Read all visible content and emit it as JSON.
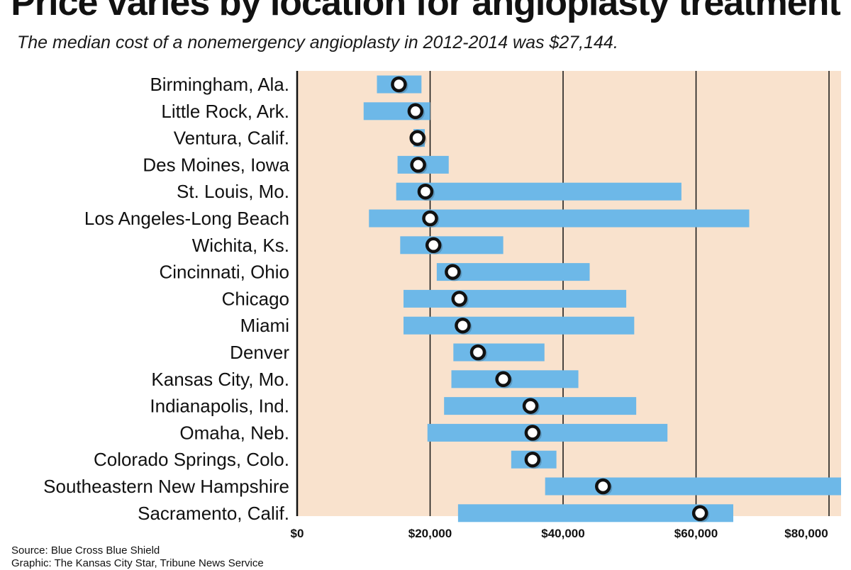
{
  "chart_data": {
    "type": "range-bar",
    "title": "Price varies by location for angioplasty treatment",
    "subtitle": "The median cost of a nonemergency angioplasty in 2012-2014 was $27,144.",
    "categories": [
      "Birmingham, Ala.",
      "Little Rock, Ark.",
      "Ventura, Calif.",
      "Des Moines, Iowa",
      "St. Louis, Mo.",
      "Los Angeles-Long Beach",
      "Wichita, Ks.",
      "Cincinnati, Ohio",
      "Chicago",
      "Miami",
      "Denver",
      "Kansas City, Mo.",
      "Indianapolis, Ind.",
      "Omaha, Neb.",
      "Colorado Springs, Colo.",
      "Southeastern New Hampshire",
      "Sacramento, Calif."
    ],
    "low": [
      12000,
      10000,
      17500,
      15100,
      14900,
      10800,
      15500,
      21000,
      16000,
      16000,
      23500,
      23200,
      22100,
      19600,
      32200,
      37300,
      24200
    ],
    "high": [
      18700,
      20000,
      19200,
      22800,
      57800,
      68000,
      31000,
      44000,
      49500,
      50700,
      37200,
      42300,
      51000,
      55700,
      39000,
      82000,
      65600
    ],
    "median": [
      15300,
      17800,
      18100,
      18200,
      19300,
      20000,
      20500,
      23400,
      24400,
      24900,
      27200,
      31000,
      35100,
      35400,
      35400,
      46000,
      60600
    ],
    "x_ticks": [
      0,
      20000,
      40000,
      60000,
      80000
    ],
    "x_tick_labels": [
      "$0",
      "$20,000",
      "$40,000",
      "$60,000",
      "$80,000"
    ],
    "xlim": [
      0,
      82000
    ],
    "grid": true,
    "colors": {
      "bar": "#6db8e8",
      "plot_background": "#f9e2cd",
      "marker_fill": "#ffffff",
      "marker_stroke": "#111111",
      "gridline": "#111111"
    }
  },
  "footer": {
    "source": "Source: Blue Cross Blue Shield",
    "graphic": "Graphic: The Kansas City Star, Tribune News Service"
  }
}
